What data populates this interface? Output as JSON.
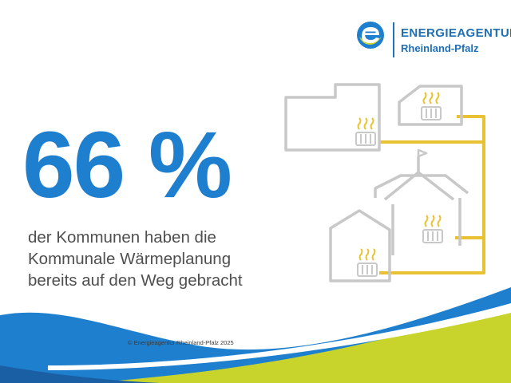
{
  "logo": {
    "line1": "ENERGIEAGENTUR",
    "line2": "Rheinland-Pfalz"
  },
  "stat": {
    "value": "66 %",
    "lines": [
      "der Kommunen haben die",
      "Kommunale Wärmeplanung",
      "bereits auf den Weg gebracht"
    ]
  },
  "footer": {
    "copyright": "© Energieagentur Rheinland-Pfalz 2025"
  },
  "colors": {
    "brand_blue": "#1f7fcf",
    "dark_blue": "#1a5fa3",
    "lime": "#c8d42c",
    "pipe_yellow": "#e8c233",
    "outline_gray": "#c8c8c8",
    "text_gray": "#4f4f4f"
  },
  "icons": [
    "energieagentur-logo-icon",
    "building-icon",
    "house-icon",
    "school-building-icon",
    "radiator-icon",
    "heat-waves-icon",
    "flag-icon"
  ]
}
